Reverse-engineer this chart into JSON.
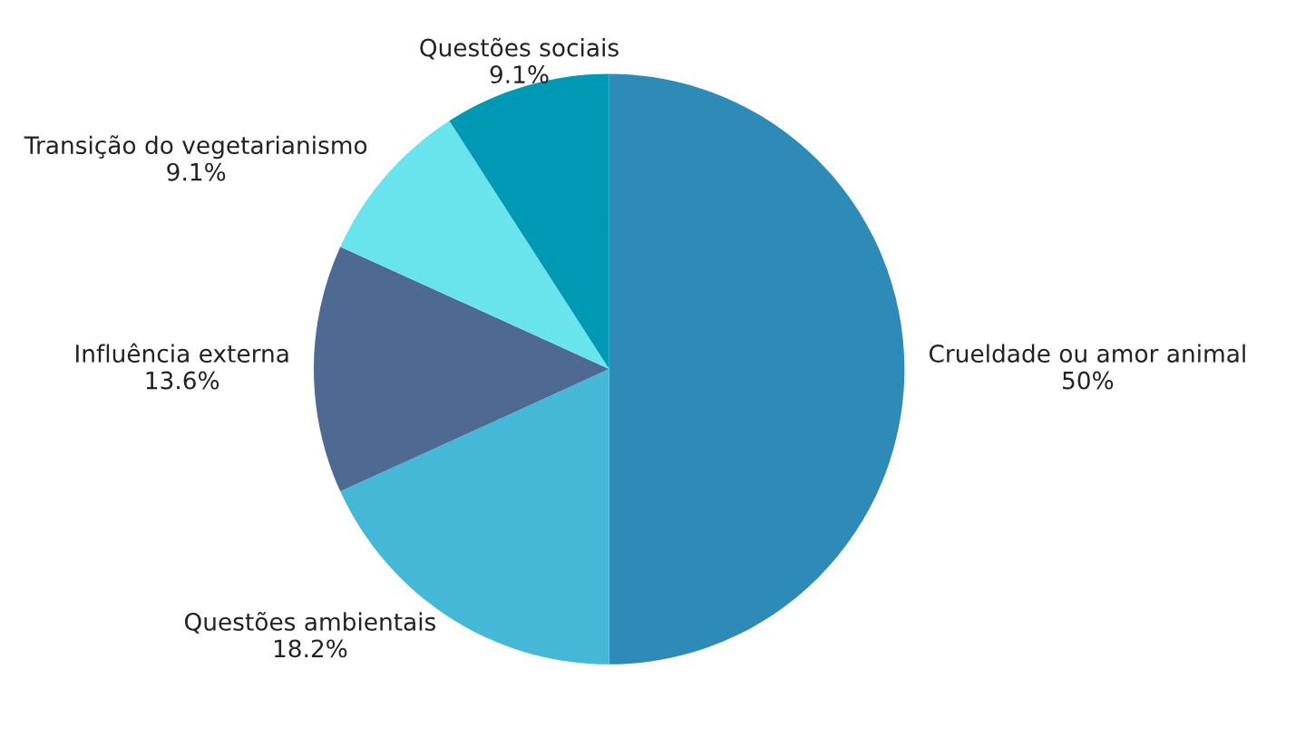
{
  "chart_data": {
    "type": "pie",
    "categories": [
      "Crueldade ou amor animal",
      "Questões ambientais",
      "Influência externa",
      "Transição do vegetarianismo",
      "Questões sociais"
    ],
    "values": [
      50,
      18.2,
      13.6,
      9.1,
      9.1
    ],
    "value_labels": [
      "50%",
      "18.2%",
      "13.6%",
      "9.1%",
      "9.1%"
    ],
    "colors": [
      "#2e8bb8",
      "#45b8d8",
      "#4e6a93",
      "#6ae4ec",
      "#0099b5"
    ],
    "legend": false
  }
}
